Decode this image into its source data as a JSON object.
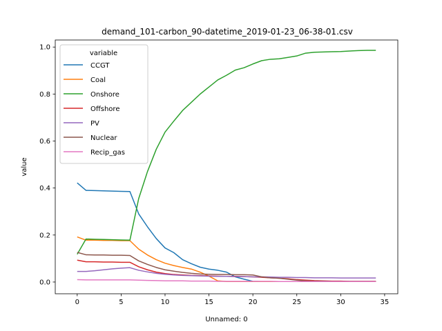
{
  "chart_data": {
    "type": "line",
    "title": "demand_101-carbon_90-datetime_2019-01-23_06-38-01.csv",
    "xlabel": "Unnamed: 0",
    "ylabel": "value",
    "xlim": [
      -2.5,
      36.5
    ],
    "ylim": [
      -0.05,
      1.03
    ],
    "xticks": [
      0,
      5,
      10,
      15,
      20,
      25,
      30,
      35
    ],
    "yticks": [
      0.0,
      0.2,
      0.4,
      0.6,
      0.8,
      1.0
    ],
    "legend": {
      "title": "variable",
      "placement": "top-left"
    },
    "grid": false,
    "x": [
      0,
      1,
      2,
      3,
      4,
      5,
      6,
      7,
      8,
      9,
      10,
      11,
      12,
      13,
      14,
      15,
      16,
      17,
      18,
      19,
      20,
      21,
      22,
      23,
      24,
      25,
      26,
      27,
      28,
      29,
      30,
      31,
      32,
      33,
      34
    ],
    "series": [
      {
        "name": "CCGT",
        "color": "#1f77b4",
        "values": [
          0.422,
          0.39,
          0.389,
          0.388,
          0.387,
          0.386,
          0.385,
          0.29,
          0.235,
          0.185,
          0.145,
          0.125,
          0.095,
          0.078,
          0.063,
          0.055,
          0.05,
          0.042,
          0.022,
          0.012,
          0.003,
          0.002,
          0.002,
          0.002,
          0.002,
          0.002,
          0.002,
          0.002,
          0.002,
          0.002,
          0.002,
          0.002,
          0.002,
          0.002,
          0.002
        ]
      },
      {
        "name": "Coal",
        "color": "#ff7f0e",
        "values": [
          0.192,
          0.178,
          0.178,
          0.177,
          0.177,
          0.176,
          0.176,
          0.14,
          0.115,
          0.095,
          0.08,
          0.07,
          0.062,
          0.055,
          0.042,
          0.025,
          0.005,
          0.002,
          0.002,
          0.002,
          0.002,
          0.002,
          0.002,
          0.002,
          0.002,
          0.002,
          0.002,
          0.002,
          0.002,
          0.002,
          0.002,
          0.002,
          0.002,
          0.002,
          0.002
        ]
      },
      {
        "name": "Onshore",
        "color": "#2ca02c",
        "values": [
          0.118,
          0.183,
          0.182,
          0.181,
          0.18,
          0.179,
          0.178,
          0.355,
          0.47,
          0.565,
          0.638,
          0.685,
          0.73,
          0.765,
          0.8,
          0.83,
          0.86,
          0.88,
          0.902,
          0.912,
          0.928,
          0.942,
          0.948,
          0.95,
          0.956,
          0.962,
          0.974,
          0.978,
          0.979,
          0.98,
          0.981,
          0.983,
          0.985,
          0.986,
          0.986
        ]
      },
      {
        "name": "Offshore",
        "color": "#d62728",
        "values": [
          0.093,
          0.086,
          0.086,
          0.085,
          0.085,
          0.084,
          0.084,
          0.065,
          0.052,
          0.042,
          0.036,
          0.032,
          0.03,
          0.028,
          0.027,
          0.026,
          0.025,
          0.024,
          0.024,
          0.023,
          0.022,
          0.02,
          0.018,
          0.016,
          0.014,
          0.01,
          0.008,
          0.006,
          0.005,
          0.004,
          0.004,
          0.003,
          0.003,
          0.003,
          0.003
        ]
      },
      {
        "name": "PV",
        "color": "#9467bd",
        "values": [
          0.045,
          0.045,
          0.048,
          0.052,
          0.056,
          0.059,
          0.061,
          0.05,
          0.043,
          0.037,
          0.033,
          0.03,
          0.028,
          0.027,
          0.026,
          0.025,
          0.024,
          0.024,
          0.023,
          0.023,
          0.022,
          0.022,
          0.021,
          0.02,
          0.02,
          0.019,
          0.019,
          0.018,
          0.018,
          0.018,
          0.017,
          0.017,
          0.017,
          0.017,
          0.017
        ]
      },
      {
        "name": "Nuclear",
        "color": "#8c564b",
        "values": [
          0.126,
          0.116,
          0.115,
          0.115,
          0.114,
          0.114,
          0.113,
          0.09,
          0.075,
          0.062,
          0.052,
          0.046,
          0.041,
          0.037,
          0.034,
          0.033,
          0.032,
          0.032,
          0.031,
          0.031,
          0.03,
          0.022,
          0.018,
          0.016,
          0.012,
          0.008,
          0.005,
          0.004,
          0.004,
          0.003,
          0.003,
          0.003,
          0.003,
          0.003,
          0.003
        ]
      },
      {
        "name": "Recip_gas",
        "color": "#e377c2",
        "values": [
          0.01,
          0.009,
          0.009,
          0.009,
          0.009,
          0.009,
          0.009,
          0.008,
          0.007,
          0.006,
          0.005,
          0.005,
          0.005,
          0.004,
          0.004,
          0.004,
          0.003,
          0.003,
          0.003,
          0.003,
          0.003,
          0.003,
          0.003,
          0.002,
          0.002,
          0.002,
          0.002,
          0.002,
          0.002,
          0.002,
          0.002,
          0.002,
          0.002,
          0.002,
          0.002
        ]
      }
    ]
  }
}
